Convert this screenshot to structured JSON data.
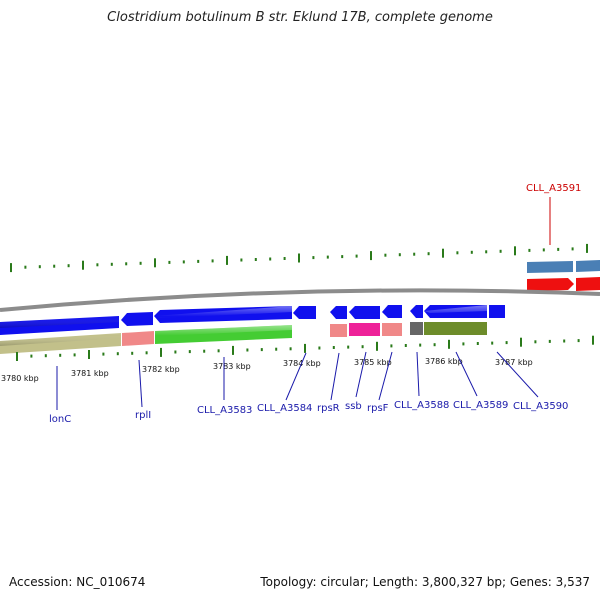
{
  "title": "Clostridium botulinum B str. Eklund 17B, complete genome",
  "footer": {
    "accession": "Accession: NC_010674",
    "summary": "Topology: circular; Length: 3,800,327 bp; Genes: 3,537"
  },
  "colors": {
    "backbone": "#8c8c8c",
    "cds_blue": "#1010ee",
    "steel_blue": "#4a7fb5",
    "red": "#ee1010",
    "khaki": "#c2c08a",
    "salmon": "#f08888",
    "green": "#44cc33",
    "pink": "#ee2299",
    "olive": "#6d8c2a",
    "gray": "#666666",
    "tick_green": "#2a7a1a",
    "label_blue": "#1a1aaa",
    "label_red": "#cc0000"
  },
  "kbp_labels": [
    "3780 kbp",
    "3781 kbp",
    "3782 kbp",
    "3783 kbp",
    "3784 kbp",
    "3785 kbp",
    "3786 kbp",
    "3787 kbp"
  ],
  "gene_labels": [
    {
      "text": "lonC",
      "color": "blue"
    },
    {
      "text": "rplI",
      "color": "blue"
    },
    {
      "text": "CLL_A3583",
      "color": "blue"
    },
    {
      "text": "CLL_A3584",
      "color": "blue"
    },
    {
      "text": "rpsR",
      "color": "blue"
    },
    {
      "text": "ssb",
      "color": "blue"
    },
    {
      "text": "rpsF",
      "color": "blue"
    },
    {
      "text": "CLL_A3588",
      "color": "blue"
    },
    {
      "text": "CLL_A3589",
      "color": "blue"
    },
    {
      "text": "CLL_A3590",
      "color": "blue"
    },
    {
      "text": "CLL_A3591",
      "color": "red"
    }
  ]
}
